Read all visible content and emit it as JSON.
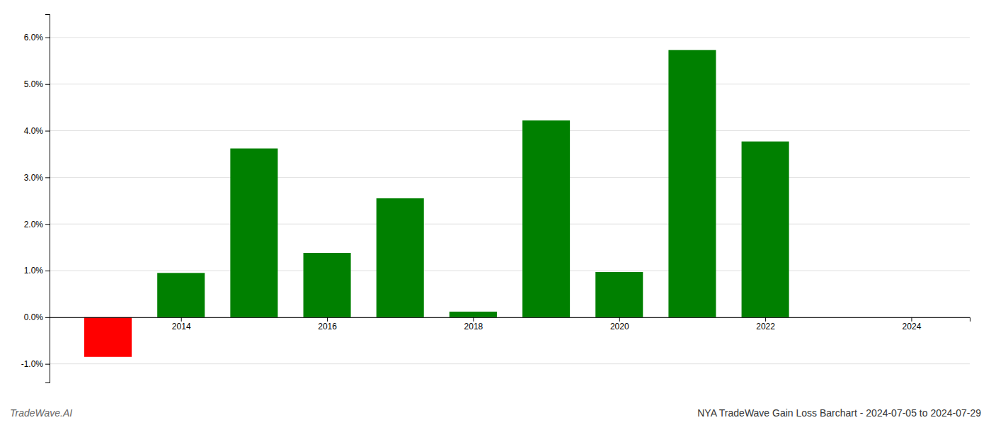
{
  "chart_data": {
    "type": "bar",
    "title": "NYA TradeWave Gain Loss Barchart - 2024-07-05 to 2024-07-29",
    "annotations": [
      "TradeWave.AI"
    ],
    "x": [
      2013,
      2014,
      2015,
      2016,
      2017,
      2018,
      2019,
      2020,
      2021,
      2022,
      2023
    ],
    "values": [
      -0.85,
      0.95,
      3.62,
      1.38,
      2.55,
      0.12,
      4.22,
      0.97,
      5.73,
      3.77,
      0.0
    ],
    "colors": [
      "#ff0000",
      "#008000",
      "#008000",
      "#008000",
      "#008000",
      "#008000",
      "#008000",
      "#008000",
      "#008000",
      "#008000",
      "#008000"
    ],
    "xlim": [
      2012.2,
      2024.8
    ],
    "xticks": [
      2014,
      2016,
      2018,
      2020,
      2022,
      2024
    ],
    "ylim": [
      -1.4,
      6.5
    ],
    "yticks": [
      {
        "value": -1.0,
        "label": "-1.0%"
      },
      {
        "value": 0.0,
        "label": "0.0%"
      },
      {
        "value": 1.0,
        "label": "1.0%"
      },
      {
        "value": 2.0,
        "label": "2.0%"
      },
      {
        "value": 3.0,
        "label": "3.0%"
      },
      {
        "value": 4.0,
        "label": "4.0%"
      },
      {
        "value": 5.0,
        "label": "5.0%"
      },
      {
        "value": 6.0,
        "label": "6.0%"
      }
    ],
    "grid": true
  }
}
